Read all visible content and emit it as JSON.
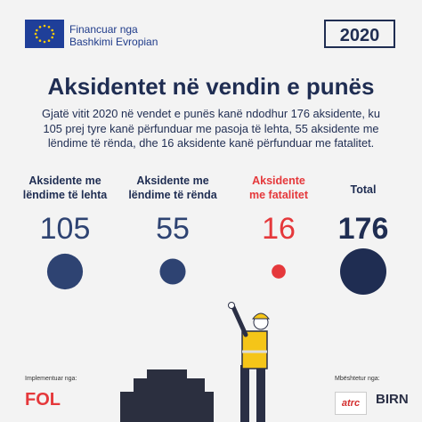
{
  "header": {
    "funding": [
      "Financuar nga",
      "Bashkimi Evropian"
    ],
    "year": "2020"
  },
  "title": "Aksidentet në vendin e punës",
  "description": "Gjatë vitit 2020 në vendet e punës kanë ndodhur 176 aksidente, ku 105 prej tyre kanë përfunduar me pasoja të lehta, 55 aksidente me lëndime të rënda, dhe 16 aksidente kanë përfunduar me fatalitet.",
  "stats": [
    {
      "label": "Aksidente me lëndime të lehta",
      "value": 105,
      "color": "#2e4372"
    },
    {
      "label": "Aksidente me lëndime të rënda",
      "value": 55,
      "color": "#2e4372"
    },
    {
      "label": "Aksidente me fatalitet",
      "value": 16,
      "color": "#e5383b"
    },
    {
      "label": "Total",
      "value": 176,
      "color": "#1f2d52"
    }
  ],
  "footer": {
    "implemented_by": "Implementuar nga:",
    "implementer": "FOL",
    "supported_by": "Mbështetur nga:",
    "supporters": [
      "atrc",
      "BIRN"
    ]
  }
}
